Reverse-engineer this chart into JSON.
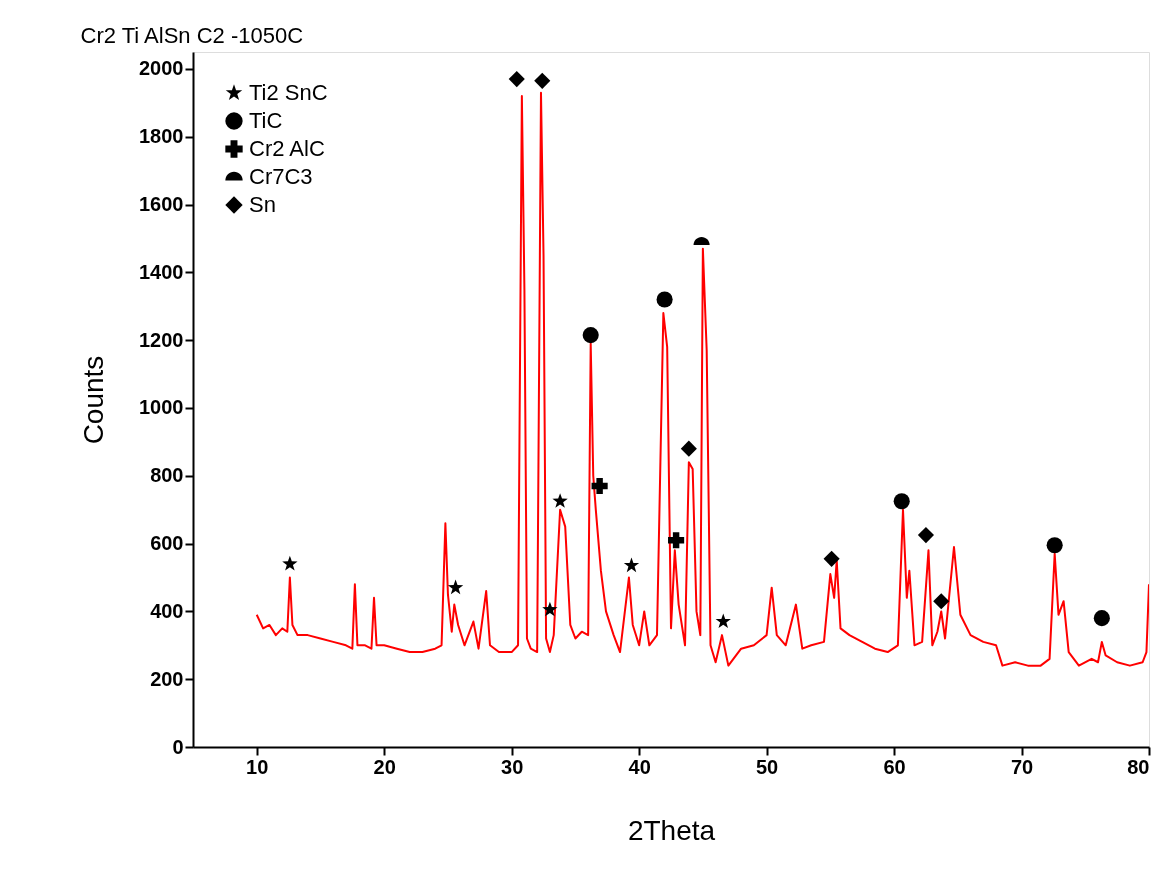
{
  "chart_data": {
    "type": "line",
    "title": "Cr2 Ti AlSn C2 -1050C",
    "xlabel": "2Theta",
    "ylabel": "Counts",
    "xlim": [
      5,
      80
    ],
    "ylim": [
      0,
      2050
    ],
    "xticks": [
      10,
      20,
      30,
      40,
      50,
      60,
      70,
      80
    ],
    "yticks": [
      0,
      200,
      400,
      600,
      800,
      1000,
      1200,
      1400,
      1600,
      1800,
      2000
    ],
    "grid": false,
    "legend": "top left",
    "line_style": "solid",
    "series": [
      {
        "color": "#ff0000",
        "x": [
          10,
          10.5,
          11,
          11.5,
          12,
          12.4,
          12.6,
          12.8,
          13.2,
          14,
          15,
          16,
          17,
          17.5,
          17.7,
          17.9,
          18.5,
          19,
          19.2,
          19.4,
          20,
          21,
          22,
          23,
          24,
          24.5,
          24.8,
          25.0,
          25.3,
          25.5,
          25.8,
          26.3,
          27.0,
          27.4,
          28.0,
          28.3,
          29,
          30,
          30.5,
          30.8,
          31.0,
          31.2,
          31.5,
          32,
          32.3,
          32.5,
          32.7,
          33.0,
          33.3,
          33.8,
          34.2,
          34.6,
          35,
          35.5,
          36.0,
          36.2,
          36.4,
          36.6,
          37.0,
          37.4,
          38,
          38.5,
          39.2,
          39.5,
          40,
          40.4,
          40.8,
          41.4,
          41.9,
          42.2,
          42.5,
          42.8,
          43.1,
          43.6,
          43.9,
          44.2,
          44.5,
          44.8,
          45.0,
          45.3,
          45.6,
          46,
          46.5,
          47,
          48,
          49,
          50,
          50.4,
          50.8,
          51.5,
          52.3,
          52.8,
          53.5,
          54.5,
          55.0,
          55.3,
          55.5,
          55.8,
          56.5,
          57.5,
          58.5,
          59.5,
          60.3,
          60.7,
          61.0,
          61.2,
          61.6,
          62.2,
          62.7,
          63.0,
          63.4,
          63.7,
          64.0,
          64.7,
          65.2,
          66,
          67,
          68,
          68.5,
          69.5,
          70.5,
          71.5,
          72.2,
          72.6,
          72.9,
          73.3,
          73.7,
          74.5,
          75.5,
          76.0,
          76.3,
          76.6,
          77.5,
          78.5,
          79.5,
          79.8,
          80
        ],
        "values": [
          390,
          350,
          360,
          330,
          350,
          340,
          500,
          360,
          330,
          330,
          320,
          310,
          300,
          290,
          480,
          300,
          300,
          290,
          440,
          300,
          300,
          290,
          280,
          280,
          290,
          300,
          660,
          450,
          340,
          420,
          360,
          300,
          370,
          290,
          460,
          300,
          280,
          280,
          300,
          1920,
          1350,
          320,
          290,
          280,
          1930,
          1450,
          320,
          280,
          330,
          700,
          650,
          360,
          320,
          340,
          330,
          1190,
          800,
          700,
          520,
          400,
          330,
          280,
          500,
          360,
          300,
          400,
          300,
          330,
          1280,
          1180,
          350,
          580,
          420,
          300,
          840,
          820,
          400,
          330,
          1470,
          1170,
          300,
          250,
          330,
          240,
          290,
          300,
          330,
          470,
          330,
          300,
          420,
          290,
          300,
          310,
          510,
          440,
          550,
          350,
          330,
          310,
          290,
          280,
          300,
          700,
          440,
          520,
          300,
          310,
          580,
          300,
          340,
          400,
          320,
          590,
          390,
          330,
          310,
          300,
          240,
          250,
          240,
          240,
          260,
          570,
          390,
          430,
          280,
          240,
          260,
          250,
          310,
          270,
          250,
          240,
          250,
          280,
          480
        ]
      },
      {
        "name": "Ti2 SnC",
        "color": "#000000",
        "type": "scatter",
        "marker": "star",
        "x": [
          12.6,
          25.6,
          33.0,
          33.8,
          39.4,
          46.6
        ],
        "values": [
          540,
          470,
          405,
          725,
          535,
          370
        ]
      },
      {
        "name": "TiC",
        "color": "#000000",
        "type": "scatter",
        "marker": "circle",
        "x": [
          36.2,
          42.0,
          60.6,
          72.6,
          76.3
        ],
        "values": [
          1215,
          1320,
          725,
          595,
          380
        ]
      },
      {
        "name": "Cr2 AlC",
        "color": "#000000",
        "type": "scatter",
        "marker": "cross",
        "x": [
          36.9,
          42.9
        ],
        "values": [
          770,
          610
        ]
      },
      {
        "name": "Cr7C3",
        "color": "#000000",
        "type": "scatter",
        "marker": "semicircle",
        "x": [
          44.9
        ],
        "values": [
          1490
        ]
      },
      {
        "name": "Sn",
        "color": "#000000",
        "type": "scatter",
        "marker": "diamond",
        "x": [
          30.4,
          32.4,
          43.9,
          55.1,
          62.5,
          63.7
        ],
        "values": [
          1970,
          1965,
          880,
          555,
          625,
          430
        ]
      }
    ]
  }
}
